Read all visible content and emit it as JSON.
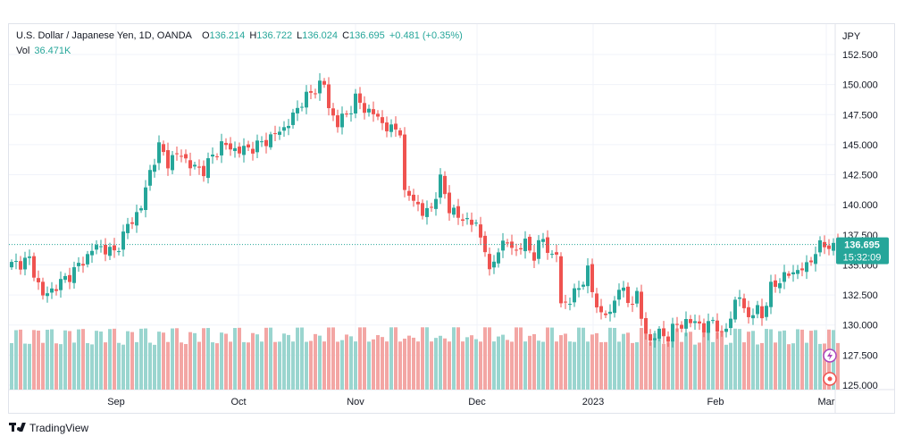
{
  "header": {
    "symbol": "U.S. Dollar / Japanese Yen, 1D, OANDA",
    "o_label": "O",
    "o_value": "136.214",
    "h_label": "H",
    "h_value": "136.722",
    "l_label": "L",
    "l_value": "136.024",
    "c_label": "C",
    "c_value": "136.695",
    "change": "+0.481 (+0.35%)",
    "vol_label": "Vol",
    "vol_value": "36.471K"
  },
  "price_axis": {
    "currency": "JPY",
    "ticks": [
      "152.500",
      "150.000",
      "147.500",
      "145.000",
      "142.500",
      "140.000",
      "137.500",
      "135.000",
      "132.500",
      "130.000",
      "127.500",
      "125.000"
    ]
  },
  "time_axis": {
    "labels": [
      "Sep",
      "Oct",
      "Nov",
      "Dec",
      "2023",
      "Feb",
      "Mar"
    ]
  },
  "last_price": {
    "price": "136.695",
    "countdown": "15:32:09"
  },
  "footer": {
    "brand": "TradingView"
  },
  "colors": {
    "up": "#26a69a",
    "down": "#ef5350",
    "up_volume": "#9ad5cf",
    "down_volume": "#f3a6a4",
    "grid": "#f0f3fa"
  },
  "chart_data": {
    "type": "candlestick",
    "title": "U.S. Dollar / Japanese Yen, 1D, OANDA",
    "ylabel": "JPY",
    "ylim": [
      125.0,
      153.5
    ],
    "grid": true,
    "period": "Aug 2022 – Mar 2023",
    "close_path": [
      [
        0,
        135.0
      ],
      [
        4,
        135.4
      ],
      [
        7,
        132.4
      ],
      [
        10,
        133.2
      ],
      [
        14,
        134.5
      ],
      [
        19,
        136.6
      ],
      [
        23,
        136.0
      ],
      [
        26,
        138.2
      ],
      [
        29,
        139.8
      ],
      [
        31,
        142.8
      ],
      [
        33,
        144.8
      ],
      [
        35,
        143.6
      ],
      [
        38,
        144.3
      ],
      [
        40,
        143.2
      ],
      [
        43,
        142.9
      ],
      [
        45,
        144.0
      ],
      [
        47,
        145.0
      ],
      [
        51,
        144.5
      ],
      [
        55,
        144.9
      ],
      [
        58,
        145.6
      ],
      [
        61,
        146.4
      ],
      [
        63,
        147.3
      ],
      [
        65,
        148.7
      ],
      [
        67,
        149.2
      ],
      [
        69,
        150.1
      ],
      [
        70,
        150.0
      ],
      [
        71,
        148.0
      ],
      [
        73,
        146.8
      ],
      [
        75,
        147.5
      ],
      [
        77,
        148.8
      ],
      [
        79,
        148.0
      ],
      [
        81,
        147.6
      ],
      [
        83,
        146.8
      ],
      [
        85,
        146.2
      ],
      [
        87,
        146.3
      ],
      [
        88,
        140.8
      ],
      [
        90,
        140.6
      ],
      [
        92,
        139.2
      ],
      [
        94,
        139.8
      ],
      [
        96,
        142.0
      ],
      [
        98,
        139.8
      ],
      [
        100,
        138.9
      ],
      [
        102,
        138.8
      ],
      [
        104,
        138.2
      ],
      [
        106,
        136.5
      ],
      [
        107,
        134.1
      ],
      [
        109,
        136.5
      ],
      [
        111,
        136.8
      ],
      [
        113,
        136.2
      ],
      [
        115,
        136.8
      ],
      [
        117,
        135.8
      ],
      [
        119,
        137.2
      ],
      [
        121,
        135.6
      ],
      [
        122,
        135.9
      ],
      [
        123,
        131.8
      ],
      [
        125,
        132.0
      ],
      [
        127,
        133.2
      ],
      [
        129,
        134.4
      ],
      [
        130,
        132.8
      ],
      [
        132,
        130.8
      ],
      [
        134,
        131.0
      ],
      [
        136,
        133.2
      ],
      [
        138,
        132.0
      ],
      [
        140,
        132.3
      ],
      [
        141,
        130.6
      ],
      [
        143,
        128.5
      ],
      [
        145,
        129.5
      ],
      [
        147,
        128.9
      ],
      [
        149,
        130.2
      ],
      [
        151,
        130.0
      ],
      [
        153,
        130.5
      ],
      [
        155,
        129.5
      ],
      [
        157,
        130.6
      ],
      [
        159,
        128.9
      ],
      [
        161,
        130.9
      ],
      [
        163,
        132.4
      ],
      [
        165,
        130.6
      ],
      [
        167,
        131.3
      ],
      [
        168,
        130.8
      ],
      [
        170,
        133.0
      ],
      [
        172,
        133.8
      ],
      [
        174,
        134.2
      ],
      [
        176,
        134.6
      ],
      [
        178,
        134.8
      ],
      [
        180,
        136.2
      ],
      [
        182,
        136.7
      ],
      [
        184,
        136.5
      ],
      [
        185,
        136.695
      ]
    ]
  }
}
